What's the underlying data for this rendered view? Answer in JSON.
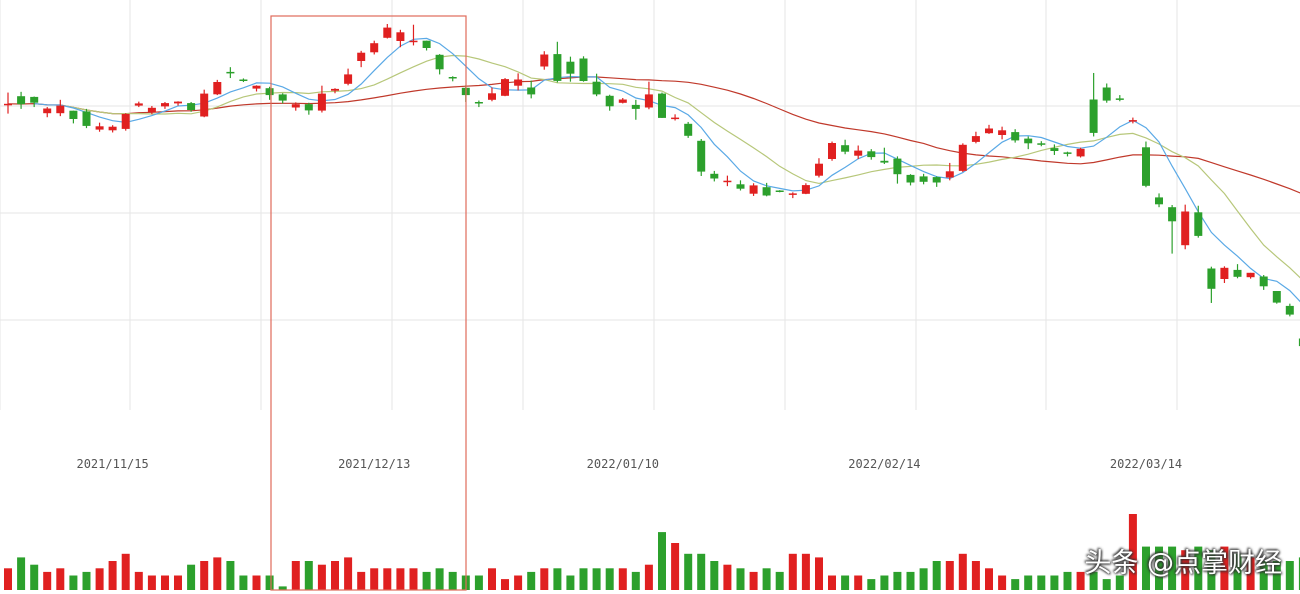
{
  "watermark": "头条 @点掌财经",
  "colors": {
    "up": "#e02020",
    "down": "#2ca02c",
    "ma5": "#5aa9e6",
    "ma10": "#b7c77a",
    "ma60": "#c0392b",
    "grid": "#e6e6e6",
    "highlight": "#e06a5a"
  },
  "chart_data": {
    "type": "candlestick",
    "x_ticks": [
      {
        "index": 8,
        "label": "2021/11/15"
      },
      {
        "index": 28,
        "label": "2021/12/13"
      },
      {
        "index": 47,
        "label": "2022/01/10"
      },
      {
        "index": 67,
        "label": "2022/02/14"
      },
      {
        "index": 87,
        "label": "2022/03/14"
      }
    ],
    "candles": [
      [
        143.7,
        143.9,
        147.0,
        141.2
      ],
      [
        146.0,
        143.8,
        147.2,
        142.5
      ],
      [
        145.8,
        144.2,
        145.9,
        143.0
      ],
      [
        141.3,
        142.6,
        143.0,
        140.2
      ],
      [
        141.3,
        143.4,
        145.0,
        140.5
      ],
      [
        142.0,
        139.7,
        142.0,
        138.5
      ],
      [
        141.8,
        137.8,
        142.5,
        137.2
      ],
      [
        136.8,
        137.7,
        138.7,
        136.2
      ],
      [
        136.6,
        137.6,
        138.0,
        136.0
      ],
      [
        137.0,
        141.1,
        141.3,
        136.5
      ],
      [
        143.4,
        144.0,
        144.5,
        143.0
      ],
      [
        141.6,
        142.8,
        143.3,
        141.0
      ],
      [
        143.2,
        144.1,
        144.4,
        142.5
      ],
      [
        144.0,
        144.5,
        144.6,
        143.4
      ],
      [
        144.1,
        142.2,
        144.4,
        141.7
      ],
      [
        140.4,
        146.7,
        147.8,
        140.2
      ],
      [
        146.5,
        149.9,
        150.5,
        146.3
      ],
      [
        152.7,
        152.6,
        154.0,
        151.0
      ],
      [
        150.6,
        150.2,
        150.9,
        149.9
      ],
      [
        148.1,
        148.9,
        149.0,
        147.3
      ],
      [
        148.2,
        146.3,
        148.6,
        145.0
      ],
      [
        146.5,
        144.8,
        146.8,
        144.0
      ],
      [
        142.9,
        143.8,
        144.3,
        142.0
      ],
      [
        143.8,
        142.1,
        144.2,
        140.9
      ],
      [
        142.0,
        146.7,
        148.9,
        141.5
      ],
      [
        147.5,
        148.0,
        148.2,
        146.8
      ],
      [
        149.4,
        152.0,
        153.6,
        149.0
      ],
      [
        155.7,
        158.0,
        158.5,
        154.0
      ],
      [
        158.1,
        160.6,
        161.3,
        157.5
      ],
      [
        162.1,
        164.9,
        165.9,
        161.9
      ],
      [
        161.2,
        163.6,
        164.3,
        159.5
      ],
      [
        161.2,
        161.3,
        165.7,
        160.0
      ],
      [
        161.3,
        159.3,
        161.3,
        158.6
      ],
      [
        157.4,
        153.4,
        157.6,
        152.0
      ],
      [
        151.3,
        151.0,
        151.5,
        150.1
      ],
      [
        148.3,
        146.3,
        149.0,
        144.4
      ],
      [
        144.4,
        144.0,
        144.8,
        143.0
      ],
      [
        145.0,
        146.8,
        148.4,
        144.6
      ],
      [
        146.1,
        150.7,
        151.0,
        146.0
      ],
      [
        148.9,
        150.6,
        152.3,
        147.6
      ],
      [
        148.4,
        146.5,
        150.3,
        145.4
      ],
      [
        154.2,
        157.5,
        158.4,
        153.3
      ],
      [
        157.6,
        150.2,
        161.0,
        149.8
      ],
      [
        155.5,
        152.2,
        156.9,
        150.0
      ],
      [
        156.4,
        150.2,
        157.0,
        150.0
      ],
      [
        150.0,
        146.5,
        152.2,
        146.0
      ],
      [
        146.1,
        143.2,
        146.4,
        142.0
      ],
      [
        144.2,
        145.1,
        145.5,
        144.0
      ],
      [
        143.6,
        142.5,
        145.0,
        139.5
      ],
      [
        142.9,
        146.5,
        150.0,
        142.4
      ],
      [
        146.7,
        140.0,
        147.0,
        140.0
      ],
      [
        140.1,
        140.1,
        141.0,
        139.3
      ],
      [
        138.4,
        135.1,
        138.9,
        134.5
      ],
      [
        133.7,
        125.2,
        134.2,
        124.0
      ],
      [
        124.6,
        123.3,
        125.4,
        122.5
      ],
      [
        122.5,
        122.7,
        124.1,
        121.2
      ],
      [
        121.7,
        120.5,
        122.8,
        120.0
      ],
      [
        119.1,
        121.4,
        122.0,
        118.5
      ],
      [
        120.9,
        118.6,
        122.1,
        118.4
      ],
      [
        120.0,
        119.7,
        120.1,
        119.5
      ],
      [
        119.0,
        119.2,
        119.5,
        117.9
      ],
      [
        119.1,
        121.5,
        122.0,
        119.0
      ],
      [
        124.1,
        127.4,
        128.9,
        123.6
      ],
      [
        128.7,
        133.1,
        133.5,
        128.2
      ],
      [
        132.5,
        130.7,
        134.0,
        130.0
      ],
      [
        129.6,
        131.0,
        132.4,
        128.7
      ],
      [
        130.8,
        129.2,
        131.4,
        128.5
      ],
      [
        128.2,
        127.7,
        131.8,
        127.3
      ],
      [
        128.8,
        124.5,
        129.4,
        121.9
      ],
      [
        124.3,
        122.2,
        124.5,
        121.4
      ],
      [
        123.9,
        122.4,
        124.6,
        121.7
      ],
      [
        123.7,
        122.2,
        123.9,
        121.0
      ],
      [
        123.6,
        125.3,
        127.6,
        122.8
      ],
      [
        125.4,
        132.6,
        133.0,
        125.1
      ],
      [
        133.4,
        135.0,
        136.2,
        133.0
      ],
      [
        135.8,
        137.1,
        138.1,
        135.6
      ],
      [
        135.3,
        136.6,
        137.6,
        134.1
      ],
      [
        136.1,
        133.8,
        136.9,
        133.2
      ],
      [
        134.3,
        133.0,
        134.9,
        131.4
      ],
      [
        133.0,
        132.6,
        133.6,
        132.2
      ],
      [
        131.7,
        130.9,
        132.7,
        129.8
      ],
      [
        130.5,
        130.3,
        130.7,
        129.4
      ],
      [
        129.4,
        131.5,
        131.8,
        129.1
      ],
      [
        145.1,
        135.9,
        152.4,
        134.9
      ],
      [
        148.4,
        144.8,
        149.5,
        144.2
      ],
      [
        145.4,
        145.2,
        146.3,
        144.6
      ],
      [
        139.0,
        139.4,
        140.1,
        138.5
      ],
      [
        131.9,
        121.3,
        133.5,
        120.9
      ],
      [
        118.1,
        116.2,
        119.2,
        115.4
      ],
      [
        115.4,
        111.5,
        116.0,
        102.6
      ],
      [
        104.9,
        114.2,
        116.1,
        103.8
      ],
      [
        114.0,
        107.5,
        115.8,
        107.0
      ],
      [
        98.5,
        92.9,
        99.0,
        89.0
      ],
      [
        95.6,
        98.7,
        99.1,
        94.5
      ],
      [
        98.1,
        96.2,
        99.7,
        95.8
      ],
      [
        96.1,
        97.3,
        97.3,
        95.7
      ],
      [
        96.3,
        93.6,
        96.7,
        92.6
      ],
      [
        92.3,
        89.1,
        92.3,
        88.8
      ],
      [
        88.2,
        85.8,
        88.8,
        85.3
      ],
      [
        79.2,
        77.1,
        80.2,
        76.2
      ],
      [
        76.5,
        74.1,
        77.0,
        73.6
      ]
    ],
    "volume": [
      6,
      9,
      7,
      5,
      6,
      4,
      5,
      6,
      8,
      10,
      5,
      4,
      4,
      4,
      7,
      8,
      9,
      8,
      4,
      4,
      4,
      1,
      8,
      8,
      7,
      8,
      9,
      5,
      6,
      6,
      6,
      6,
      5,
      6,
      5,
      4,
      4,
      6,
      3,
      4,
      5,
      6,
      6,
      4,
      6,
      6,
      6,
      6,
      5,
      7,
      16,
      13,
      10,
      10,
      8,
      7,
      6,
      5,
      6,
      5,
      10,
      10,
      9,
      4,
      4,
      4,
      3,
      4,
      5,
      5,
      6,
      8,
      8,
      10,
      8,
      6,
      4,
      3,
      4,
      4,
      4,
      5,
      5,
      5,
      3,
      4,
      21,
      12,
      12,
      12,
      11,
      12,
      11,
      12,
      10,
      9,
      8,
      8,
      8,
      9,
      12
    ]
  }
}
